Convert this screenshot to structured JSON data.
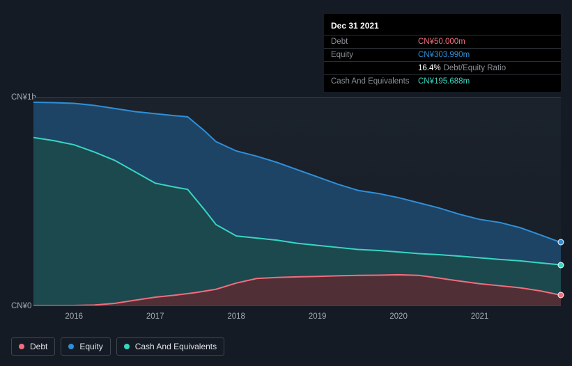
{
  "tooltip": {
    "date": "Dec 31 2021",
    "rows": [
      {
        "label": "Debt",
        "value": "CN¥50.000m",
        "color": "#f26d7d",
        "detail": ""
      },
      {
        "label": "Equity",
        "value": "CN¥303.990m",
        "color": "#2f8fd8",
        "detail": ""
      },
      {
        "label": "",
        "value": "16.4%",
        "color": "#ffffff",
        "detail": "Debt/Equity Ratio"
      },
      {
        "label": "Cash And Equivalents",
        "value": "CN¥195.688m",
        "color": "#37d6c0",
        "detail": ""
      }
    ]
  },
  "chart": {
    "type": "area",
    "background": "#171e27",
    "gridline_color": "#3a4049",
    "y_top_label": "CN¥1b",
    "y_bottom_label": "CN¥0",
    "x_min": 2015.5,
    "x_max": 2022.0,
    "x_ticks": [
      2016,
      2017,
      2018,
      2019,
      2020,
      2021
    ],
    "y_min": 0,
    "y_max": 1000,
    "series": [
      {
        "name": "Equity",
        "fill": "#1f4a70",
        "fill_opacity": 0.85,
        "stroke": "#2f8fd8",
        "stroke_width": 2,
        "end_marker_color": "#2f8fd8",
        "points": [
          [
            2015.5,
            980
          ],
          [
            2015.75,
            978
          ],
          [
            2016.0,
            975
          ],
          [
            2016.25,
            965
          ],
          [
            2016.5,
            950
          ],
          [
            2016.75,
            935
          ],
          [
            2017.0,
            925
          ],
          [
            2017.25,
            915
          ],
          [
            2017.4,
            910
          ],
          [
            2017.6,
            845
          ],
          [
            2017.75,
            790
          ],
          [
            2018.0,
            745
          ],
          [
            2018.25,
            720
          ],
          [
            2018.5,
            690
          ],
          [
            2018.75,
            655
          ],
          [
            2019.0,
            620
          ],
          [
            2019.25,
            585
          ],
          [
            2019.5,
            555
          ],
          [
            2019.75,
            540
          ],
          [
            2020.0,
            520
          ],
          [
            2020.25,
            495
          ],
          [
            2020.5,
            470
          ],
          [
            2020.75,
            440
          ],
          [
            2021.0,
            415
          ],
          [
            2021.25,
            400
          ],
          [
            2021.5,
            375
          ],
          [
            2021.75,
            340
          ],
          [
            2022.0,
            304
          ]
        ]
      },
      {
        "name": "Cash And Equivalents",
        "fill": "#1d4a4a",
        "fill_opacity": 0.9,
        "stroke": "#37d6c0",
        "stroke_width": 2,
        "end_marker_color": "#37d6c0",
        "points": [
          [
            2015.5,
            810
          ],
          [
            2015.75,
            795
          ],
          [
            2016.0,
            775
          ],
          [
            2016.25,
            740
          ],
          [
            2016.5,
            700
          ],
          [
            2016.75,
            645
          ],
          [
            2017.0,
            590
          ],
          [
            2017.25,
            570
          ],
          [
            2017.4,
            560
          ],
          [
            2017.6,
            465
          ],
          [
            2017.75,
            390
          ],
          [
            2018.0,
            335
          ],
          [
            2018.25,
            325
          ],
          [
            2018.5,
            315
          ],
          [
            2018.75,
            300
          ],
          [
            2019.0,
            290
          ],
          [
            2019.25,
            280
          ],
          [
            2019.5,
            270
          ],
          [
            2019.75,
            265
          ],
          [
            2020.0,
            258
          ],
          [
            2020.25,
            250
          ],
          [
            2020.5,
            245
          ],
          [
            2020.75,
            238
          ],
          [
            2021.0,
            230
          ],
          [
            2021.25,
            222
          ],
          [
            2021.5,
            215
          ],
          [
            2021.75,
            205
          ],
          [
            2022.0,
            196
          ]
        ]
      },
      {
        "name": "Debt",
        "fill": "#5a2a34",
        "fill_opacity": 0.85,
        "stroke": "#f26d7d",
        "stroke_width": 2,
        "end_marker_color": "#f26d7d",
        "points": [
          [
            2015.5,
            0
          ],
          [
            2015.75,
            0
          ],
          [
            2016.0,
            0
          ],
          [
            2016.25,
            2
          ],
          [
            2016.5,
            10
          ],
          [
            2016.75,
            25
          ],
          [
            2017.0,
            40
          ],
          [
            2017.25,
            50
          ],
          [
            2017.5,
            62
          ],
          [
            2017.75,
            78
          ],
          [
            2018.0,
            108
          ],
          [
            2018.25,
            130
          ],
          [
            2018.5,
            135
          ],
          [
            2018.75,
            138
          ],
          [
            2019.0,
            140
          ],
          [
            2019.25,
            143
          ],
          [
            2019.5,
            145
          ],
          [
            2019.75,
            146
          ],
          [
            2020.0,
            148
          ],
          [
            2020.25,
            145
          ],
          [
            2020.5,
            132
          ],
          [
            2020.75,
            118
          ],
          [
            2021.0,
            105
          ],
          [
            2021.25,
            95
          ],
          [
            2021.5,
            85
          ],
          [
            2021.75,
            70
          ],
          [
            2022.0,
            50
          ]
        ]
      }
    ]
  },
  "legend": [
    {
      "label": "Debt",
      "color": "#f26d7d"
    },
    {
      "label": "Equity",
      "color": "#2f8fd8"
    },
    {
      "label": "Cash And Equivalents",
      "color": "#37d6c0"
    }
  ]
}
